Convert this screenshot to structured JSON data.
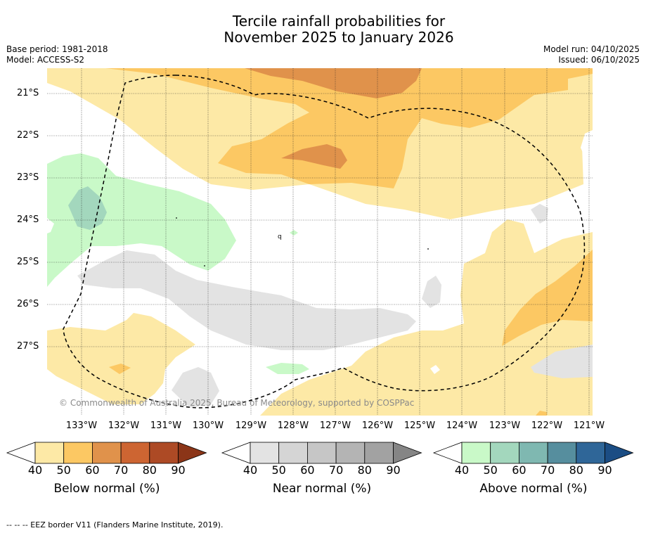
{
  "title": {
    "line1": "Tercile rainfall probabilities for",
    "line2": "November 2025 to January 2026"
  },
  "meta": {
    "base_period": "Base period: 1981-2018",
    "model": "Model: ACCESS-S2",
    "model_run": "Model run: 04/10/2025",
    "issued": "Issued: 06/10/2025"
  },
  "map": {
    "credit": "© Commonwealth of Australia 2025, Bureau of Meteorology, supported by COSPPac",
    "lat_labels": [
      "21°S",
      "22°S",
      "23°S",
      "24°S",
      "25°S",
      "26°S",
      "27°S"
    ],
    "lon_labels": [
      "133°W",
      "132°W",
      "131°W",
      "130°W",
      "129°W",
      "128°W",
      "127°W",
      "126°W",
      "125°W",
      "124°W",
      "123°W",
      "122°W",
      "121°W"
    ],
    "stray_glyph": "q"
  },
  "colorbars": [
    {
      "title": "Below normal (%)",
      "ticks": [
        "40",
        "50",
        "60",
        "70",
        "80",
        "90"
      ],
      "colors": [
        "#fde9a6",
        "#fcc863",
        "#e0924b",
        "#cd6532",
        "#ad4a25",
        "#8b3518"
      ]
    },
    {
      "title": "Near normal (%)",
      "ticks": [
        "40",
        "50",
        "60",
        "70",
        "80",
        "90"
      ],
      "colors": [
        "#e3e3e3",
        "#d5d5d5",
        "#c6c6c6",
        "#b4b4b4",
        "#a2a2a2",
        "#858585"
      ]
    },
    {
      "title": "Above normal (%)",
      "ticks": [
        "40",
        "50",
        "60",
        "70",
        "80",
        "90"
      ],
      "colors": [
        "#c9f9c8",
        "#a3d7bd",
        "#7fb8b1",
        "#568e9e",
        "#2f6698",
        "#1b4d84"
      ]
    }
  ],
  "footer": "--  --  -- EEZ border V11 (Flanders Marine Institute, 2019).",
  "colors": {
    "below_50": "#fde9a6",
    "below_60": "#fcc863",
    "below_70": "#e0924b",
    "near_50": "#e3e3e3",
    "above_50": "#c9f9c8",
    "above_60": "#a3d7bd"
  }
}
